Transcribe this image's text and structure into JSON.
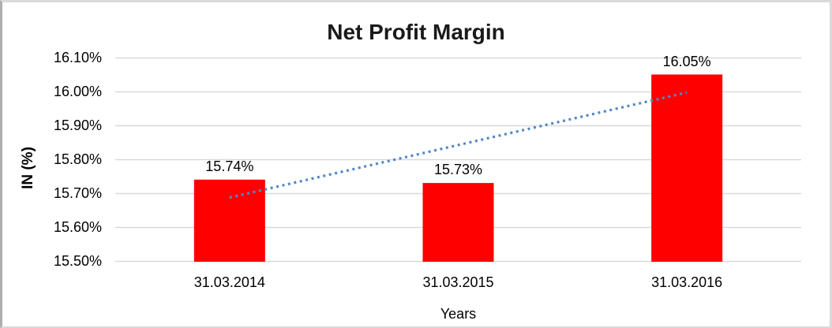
{
  "chart_data": {
    "type": "bar",
    "title": "Net Profit Margin",
    "xlabel": "Years",
    "ylabel": "IN (%)",
    "categories": [
      "31.03.2014",
      "31.03.2015",
      "31.03.2016"
    ],
    "series": [
      {
        "name": "Net Profit Margin",
        "values": [
          15.74,
          15.73,
          16.05
        ]
      }
    ],
    "value_labels": [
      "15.74%",
      "15.73%",
      "16.05%"
    ],
    "ylim": [
      15.5,
      16.1
    ],
    "ytick_values": [
      15.5,
      15.6,
      15.7,
      15.8,
      15.9,
      16.0,
      16.1
    ],
    "ytick_labels": [
      "15.50%",
      "15.60%",
      "15.70%",
      "15.80%",
      "15.90%",
      "16.00%",
      "16.10%"
    ],
    "grid": "horizontal",
    "legend": "none",
    "colors": {
      "bar": "#FF0000",
      "gridline": "#D9D9D9",
      "text": "#000000",
      "trendline": "#5287C6",
      "background": "#FFFFFF"
    },
    "trendline": {
      "type": "linear",
      "style": "dotted",
      "start_value": 15.687,
      "end_value": 15.997
    }
  }
}
